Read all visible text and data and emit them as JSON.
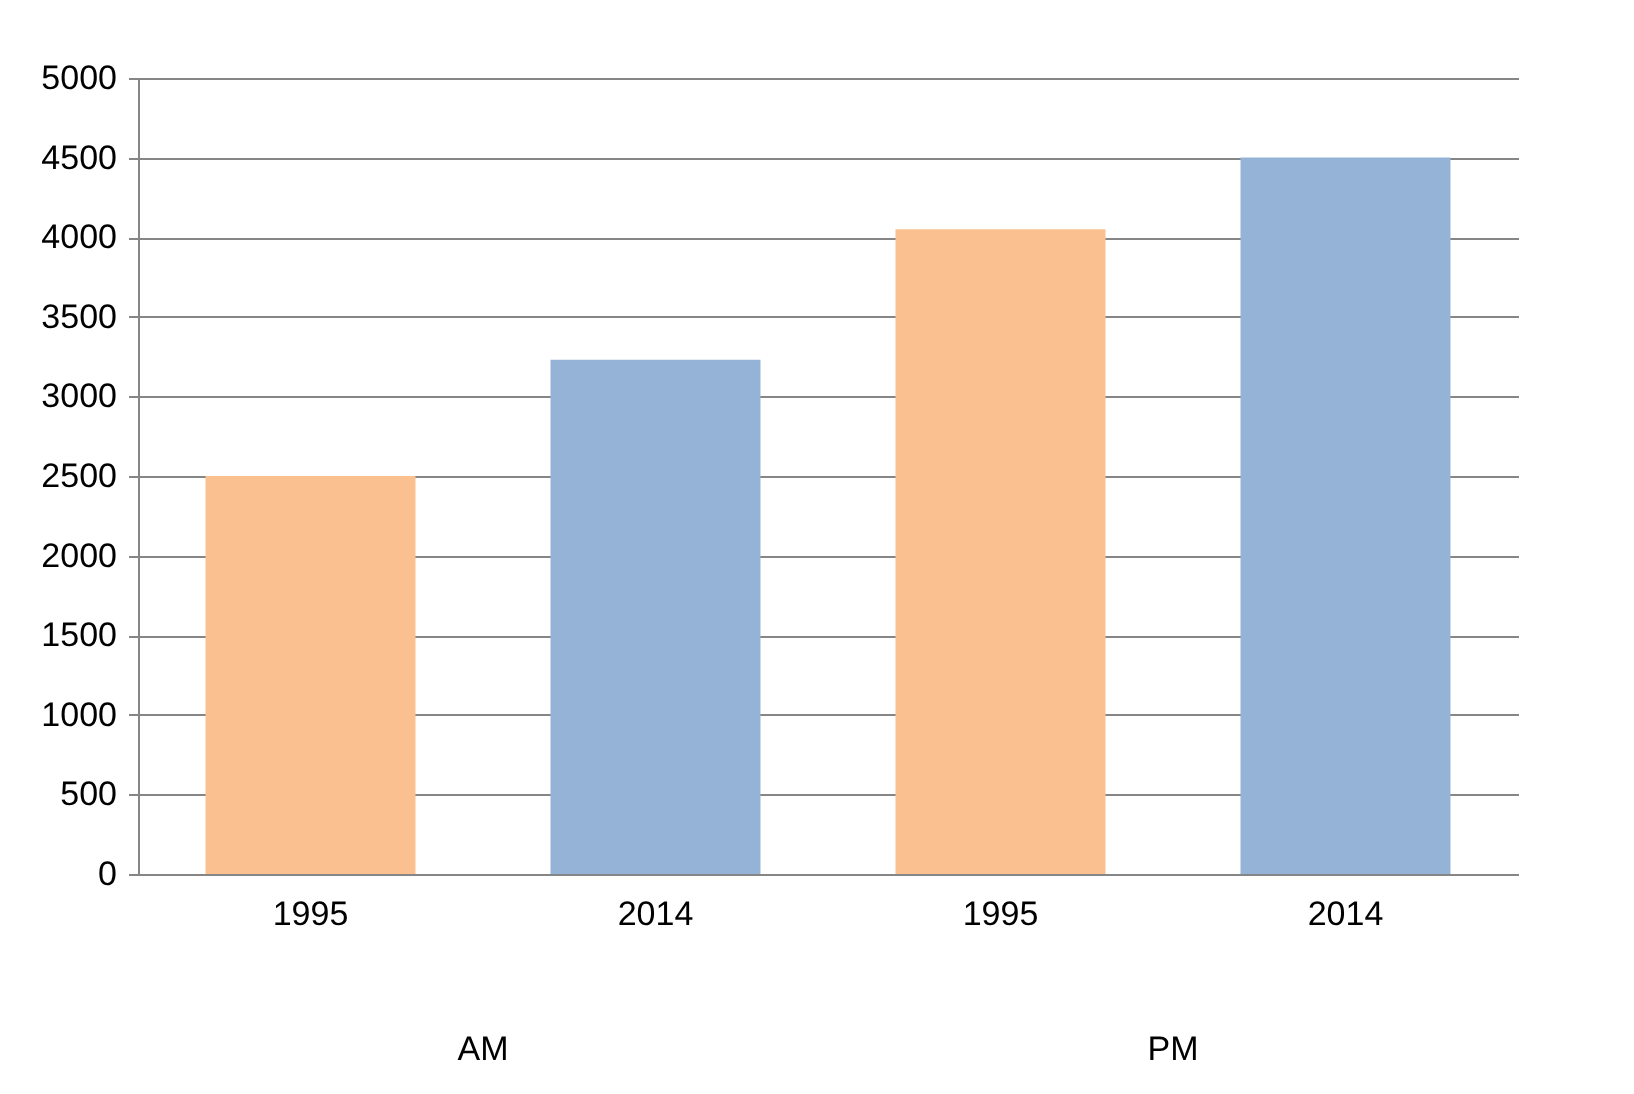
{
  "chart_data": {
    "type": "bar",
    "categories": [
      "1995",
      "2014",
      "1995",
      "2014"
    ],
    "values": [
      2500,
      3230,
      4050,
      4500
    ],
    "colors": [
      "#fac090",
      "#95b3d7",
      "#fac090",
      "#95b3d7"
    ],
    "ylim": [
      0,
      5000
    ],
    "yticks": [
      0,
      500,
      1000,
      1500,
      2000,
      2500,
      3000,
      3500,
      4000,
      4500,
      5000
    ],
    "grid": "y",
    "annotations": [
      "AM",
      "PM"
    ]
  }
}
